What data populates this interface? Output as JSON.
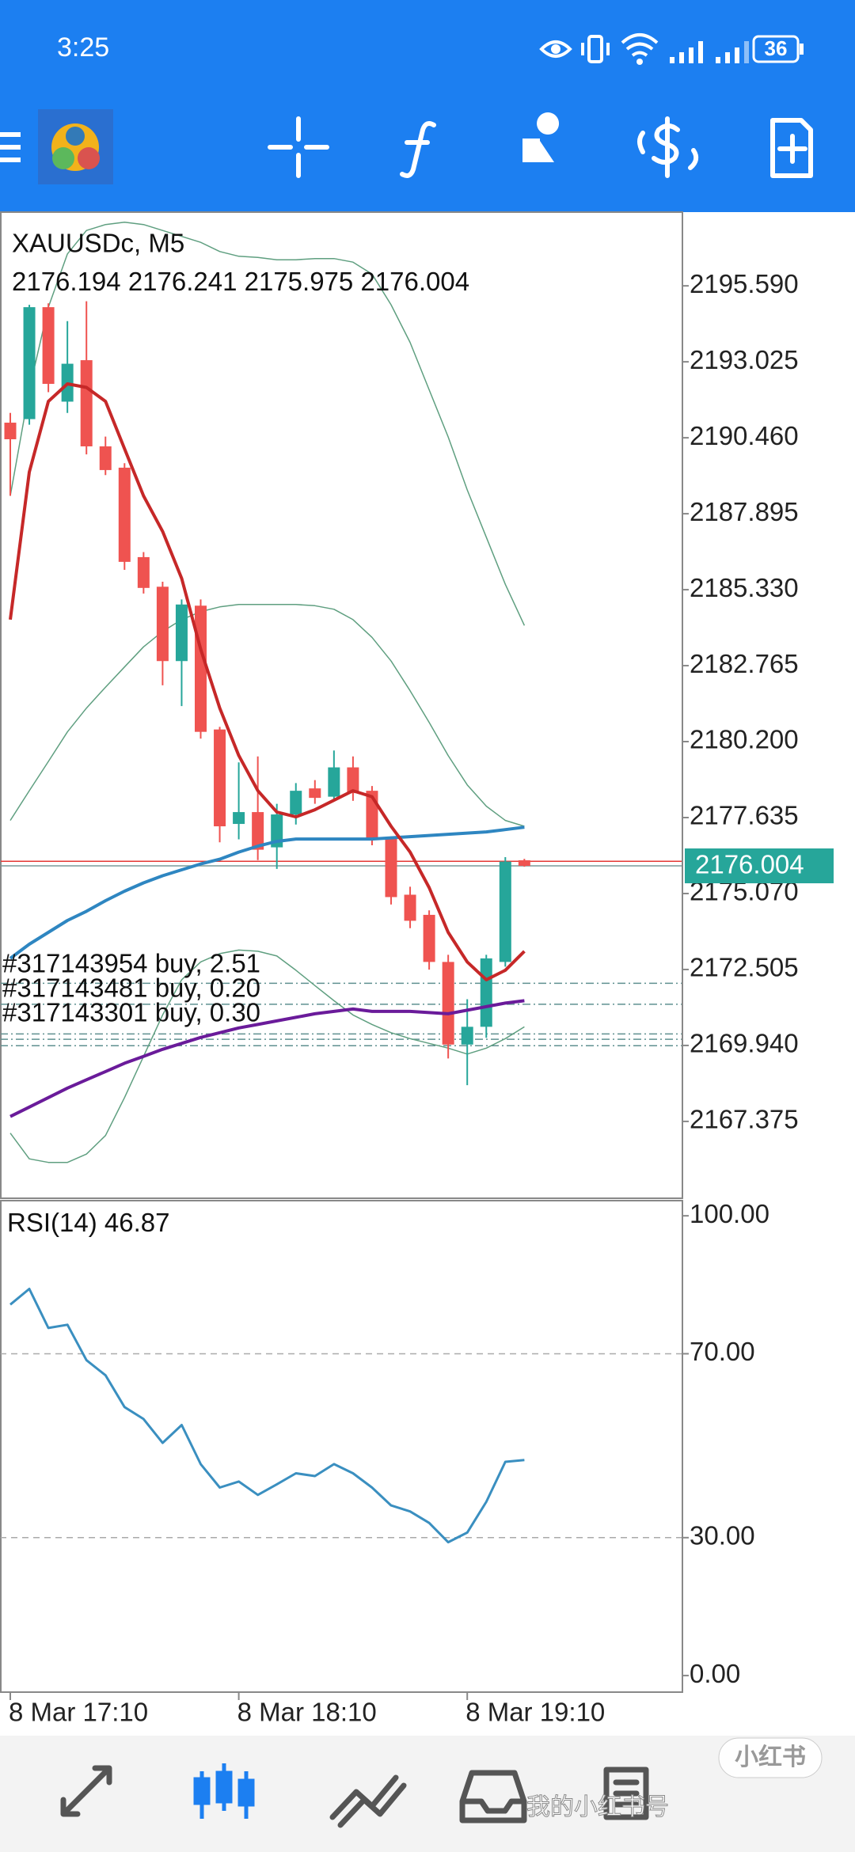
{
  "status_bar": {
    "time": "3:25",
    "battery": "36"
  },
  "chart_data": [
    {
      "type": "candlestick",
      "title": "XAUUSDc, M5",
      "categories": [
        "8 Mar 17:10",
        null,
        null,
        null,
        null,
        null,
        null,
        null,
        null,
        null,
        null,
        null,
        "8 Mar 18:10",
        null,
        null,
        null,
        null,
        null,
        null,
        null,
        null,
        null,
        null,
        null,
        "8 Mar 19:10",
        null,
        null,
        null
      ],
      "open": [
        2190.97,
        2191.09,
        2194.87,
        2191.68,
        2193.08,
        2190.17,
        2189.45,
        2186.43,
        2185.43,
        2182.92,
        2184.79,
        2180.61,
        2177.42,
        2177.82,
        2176.63,
        2177.74,
        2178.62,
        2178.34,
        2179.33,
        2178.54,
        2176.95,
        2175.03,
        2174.35,
        2172.76,
        2169.97,
        2170.57,
        2172.76,
        2176.194
      ],
      "high": [
        2191.3,
        2194.95,
        2195.0,
        2194.4,
        2195.07,
        2190.5,
        2189.6,
        2186.6,
        2185.6,
        2185.0,
        2185.0,
        2180.7,
        2179.5,
        2179.7,
        2178.1,
        2178.8,
        2178.9,
        2179.9,
        2179.7,
        2178.7,
        2177.0,
        2175.3,
        2174.5,
        2173.0,
        2171.5,
        2173.0,
        2176.3,
        2176.241
      ],
      "low": [
        2188.5,
        2190.9,
        2192.0,
        2191.3,
        2189.9,
        2189.2,
        2186.0,
        2185.2,
        2182.1,
        2181.4,
        2180.3,
        2176.8,
        2176.9,
        2176.2,
        2175.9,
        2177.4,
        2178.1,
        2178.2,
        2178.2,
        2176.7,
        2174.7,
        2173.9,
        2172.5,
        2169.5,
        2168.6,
        2170.2,
        2172.6,
        2175.975
      ],
      "close": [
        2190.41,
        2194.87,
        2192.28,
        2192.96,
        2190.17,
        2189.37,
        2186.27,
        2185.39,
        2182.92,
        2184.83,
        2180.53,
        2177.34,
        2177.82,
        2176.55,
        2177.74,
        2178.54,
        2178.3,
        2179.33,
        2178.46,
        2176.95,
        2174.95,
        2174.15,
        2172.76,
        2169.97,
        2170.57,
        2172.88,
        2176.15,
        2176.004
      ],
      "up_color": "#26a69a",
      "down_color": "#ef5350",
      "lines": [
        {
          "color": "#5f9f80",
          "width": 1.5,
          "values": [
            2188.5,
            2192.08,
            2194.87,
            2196.67,
            2197.46,
            2197.66,
            2197.74,
            2197.66,
            2197.46,
            2197.26,
            2197.06,
            2196.75,
            2196.59,
            2196.55,
            2196.47,
            2196.47,
            2196.51,
            2196.51,
            2196.39,
            2195.99,
            2194.95,
            2193.68,
            2192.08,
            2190.49,
            2188.7,
            2187.1,
            2185.51,
            2184.12
          ]
        },
        {
          "color": "#5f9f80",
          "width": 1.5,
          "values": [
            2177.54,
            2178.54,
            2179.53,
            2180.53,
            2181.33,
            2182.04,
            2182.72,
            2183.4,
            2183.92,
            2184.32,
            2184.59,
            2184.75,
            2184.83,
            2184.83,
            2184.83,
            2184.83,
            2184.79,
            2184.67,
            2184.32,
            2183.72,
            2182.92,
            2181.92,
            2180.85,
            2179.73,
            2178.74,
            2178.02,
            2177.54,
            2177.34
          ]
        },
        {
          "color": "#5f9f80",
          "width": 1.5,
          "values": [
            2166.98,
            2166.11,
            2165.99,
            2165.99,
            2166.27,
            2166.9,
            2168.18,
            2169.57,
            2170.97,
            2172.16,
            2172.76,
            2173.04,
            2173.16,
            2173.12,
            2172.96,
            2172.48,
            2171.96,
            2171.45,
            2170.97,
            2170.65,
            2170.37,
            2170.17,
            2170.01,
            2169.85,
            2169.65,
            2169.85,
            2170.17,
            2170.57
          ]
        },
        {
          "color": "#6a1b9a",
          "width": 4,
          "values": [
            2167.54,
            2167.86,
            2168.18,
            2168.5,
            2168.78,
            2169.06,
            2169.34,
            2169.57,
            2169.81,
            2170.01,
            2170.21,
            2170.37,
            2170.53,
            2170.65,
            2170.77,
            2170.89,
            2171.01,
            2171.09,
            2171.17,
            2171.09,
            2171.09,
            2171.09,
            2171.05,
            2171.01,
            2171.13,
            2171.25,
            2171.37,
            2171.45
          ]
        },
        {
          "color": "#2e86c1",
          "width": 4,
          "values": [
            2172.88,
            2173.36,
            2173.76,
            2174.16,
            2174.47,
            2174.83,
            2175.15,
            2175.43,
            2175.67,
            2175.87,
            2176.07,
            2176.23,
            2176.47,
            2176.67,
            2176.83,
            2176.91,
            2176.91,
            2176.91,
            2176.91,
            2176.91,
            2176.95,
            2176.99,
            2177.03,
            2177.07,
            2177.11,
            2177.15,
            2177.23,
            2177.31
          ]
        },
        {
          "color": "#c62828",
          "width": 4,
          "values": [
            2184.32,
            2189.3,
            2191.69,
            2192.28,
            2192.16,
            2191.69,
            2190.09,
            2188.5,
            2187.3,
            2185.71,
            2183.32,
            2181.33,
            2179.73,
            2178.54,
            2177.82,
            2177.66,
            2177.9,
            2178.22,
            2178.54,
            2178.34,
            2177.34,
            2176.47,
            2175.27,
            2173.76,
            2172.76,
            2172.16,
            2172.48,
            2173.12
          ]
        }
      ],
      "ask": 2176.16,
      "ask_color": "#e53935",
      "bid_color": "#26a69a",
      "orders": [
        {
          "label": "#317143954 buy, 2.51",
          "price": 2172.04
        },
        {
          "label": "#317143481 buy, 0.20",
          "price": 2171.33
        },
        {
          "label": "#317143301 buy, 0.30",
          "price": 2170.33
        }
      ],
      "levels": [
        2170.15,
        2169.93
      ],
      "ylim": [
        2164.78,
        2198.08
      ],
      "yticks": [
        {
          "value": 2195.59,
          "label": "2195.590"
        },
        2193.025,
        {
          "value": 2190.46,
          "label": "2190.460"
        },
        2187.895,
        {
          "value": 2185.33,
          "label": "2185.330"
        },
        2182.765,
        {
          "value": 2180.2,
          "label": "2180.200"
        },
        2177.635,
        {
          "value": 2175.07,
          "label": "2175.070"
        },
        2172.505,
        {
          "value": 2169.94,
          "label": "2169.940"
        },
        2167.375
      ]
    },
    {
      "type": "line",
      "title": "RSI(14)",
      "color": "#3a8fc0",
      "values": [
        80.7,
        84.1,
        75.6,
        76.3,
        68.6,
        65.3,
        58.4,
        55.8,
        50.6,
        54.5,
        46.0,
        40.9,
        42.2,
        39.3,
        41.6,
        44.0,
        43.4,
        46.0,
        44.0,
        40.9,
        37.0,
        35.7,
        33.2,
        29.0,
        31.1,
        37.8,
        46.5,
        46.87
      ],
      "levels": [
        70,
        30
      ],
      "ylim": [
        -3.6,
        103.3
      ],
      "yticks": [
        {
          "value": 100,
          "label": "100.00"
        },
        {
          "value": 70,
          "label": "70.00"
        },
        {
          "value": 30,
          "label": "30.00"
        },
        {
          "value": 0,
          "label": "0.00"
        }
      ]
    }
  ],
  "watermark": {
    "badge": "小红书",
    "text": "我的小红书号"
  }
}
